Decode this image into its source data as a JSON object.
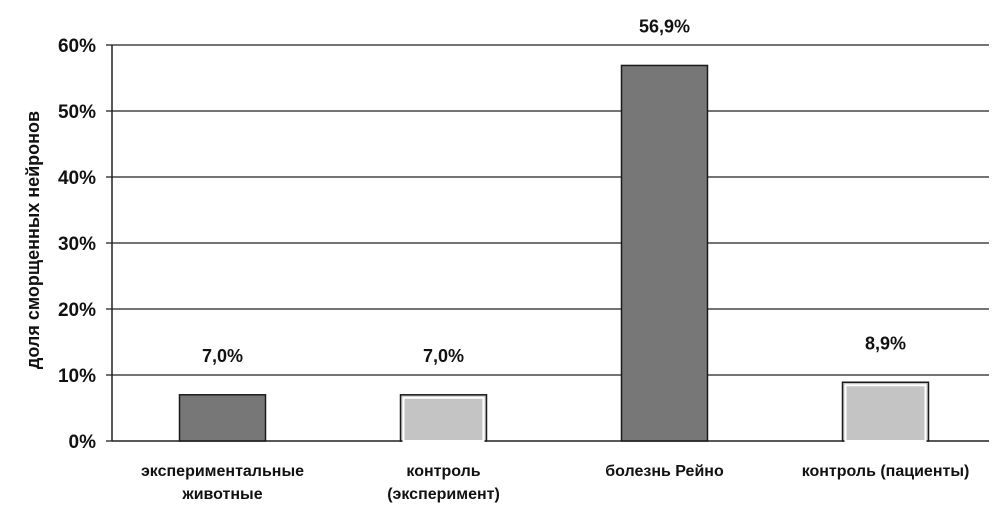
{
  "chart_data": {
    "type": "bar",
    "title": "",
    "xlabel": "",
    "ylabel": "доля сморщенных нейронов",
    "ylim": [
      0,
      60
    ],
    "yticks": [
      "0%",
      "10%",
      "20%",
      "30%",
      "40%",
      "50%",
      "60%"
    ],
    "grid": true,
    "legend": "none",
    "categories": [
      [
        "экспериментальные",
        "животные"
      ],
      [
        "контроль",
        "(эксперимент)"
      ],
      [
        "болезнь Рейно"
      ],
      [
        "контроль (пациенты)"
      ]
    ],
    "values": [
      7.0,
      7.0,
      56.9,
      8.9
    ],
    "data_labels": [
      "7,0%",
      "7,0%",
      "56,9%",
      "8,9%"
    ],
    "bar_colors": [
      "#777777",
      "#c4c4c4",
      "#777777",
      "#c4c4c4"
    ]
  }
}
